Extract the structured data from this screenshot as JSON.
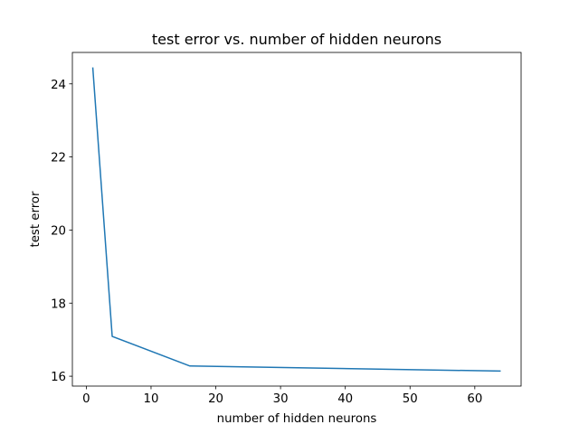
{
  "chart_data": {
    "type": "line",
    "title": "test error vs. number of hidden neurons",
    "xlabel": "number of hidden neurons",
    "ylabel": "test error",
    "xlim": [
      -2.15,
      67.15
    ],
    "ylim": [
      15.73,
      24.86
    ],
    "grid": false,
    "x_ticks": [
      0,
      10,
      20,
      30,
      40,
      50,
      60
    ],
    "y_ticks": [
      16,
      18,
      20,
      22,
      24
    ],
    "series": [
      {
        "color": "#1f77b4",
        "x": [
          1,
          4,
          16,
          64
        ],
        "y": [
          24.45,
          17.09,
          16.28,
          16.14
        ]
      }
    ]
  }
}
